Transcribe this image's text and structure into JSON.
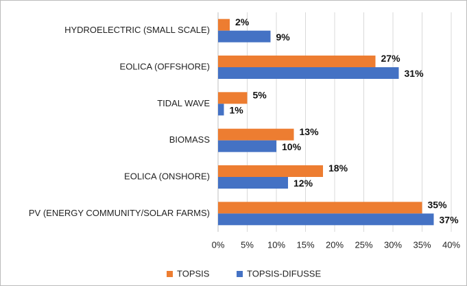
{
  "chart_data": {
    "type": "bar",
    "orientation": "horizontal",
    "categories": [
      "HYDROELECTRIC (SMALL SCALE)",
      "EOLICA (OFFSHORE)",
      "TIDAL WAVE",
      "BIOMASS",
      "EOLICA (ONSHORE)",
      "PV (ENERGY COMMUNITY/SOLAR FARMS)"
    ],
    "series": [
      {
        "name": "TOPSIS",
        "color": "#ed7d31",
        "values": [
          2,
          27,
          5,
          13,
          18,
          35
        ],
        "value_labels": [
          "2%",
          "27%",
          "5%",
          "13%",
          "18%",
          "35%"
        ]
      },
      {
        "name": "TOPSIS-DIFUSSE",
        "color": "#4472c4",
        "values": [
          9,
          31,
          1,
          10,
          12,
          37
        ],
        "value_labels": [
          "9%",
          "31%",
          "1%",
          "10%",
          "12%",
          "37%"
        ]
      }
    ],
    "xlim": [
      0,
      40
    ],
    "xticks": [
      {
        "value": 0,
        "label": "0%"
      },
      {
        "value": 5,
        "label": "5%"
      },
      {
        "value": 10,
        "label": "10%"
      },
      {
        "value": 15,
        "label": "15%"
      },
      {
        "value": 20,
        "label": "20%"
      },
      {
        "value": 25,
        "label": "25%"
      },
      {
        "value": 30,
        "label": "30%"
      },
      {
        "value": 35,
        "label": "35%"
      },
      {
        "value": 40,
        "label": "40%"
      }
    ],
    "grid": true,
    "legend": "bottom"
  }
}
